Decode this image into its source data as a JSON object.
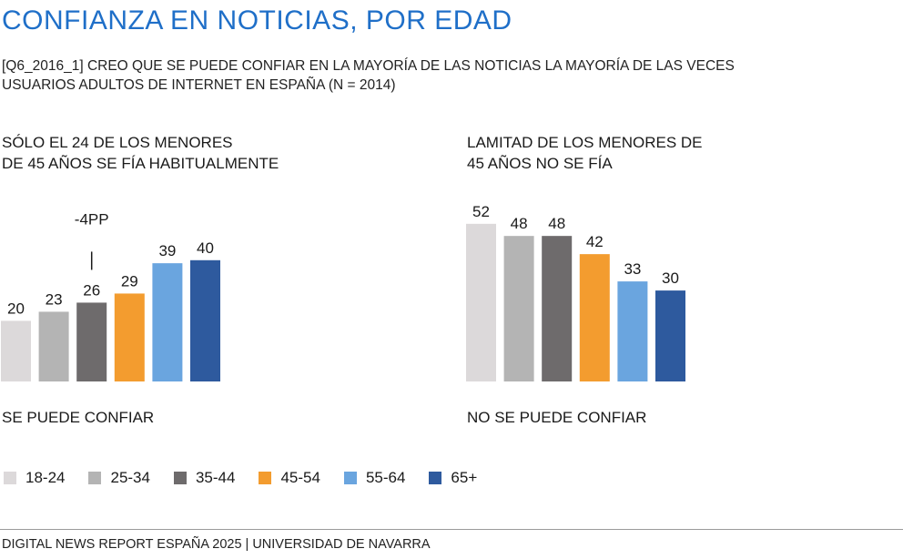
{
  "title": "CONFIANZA EN NOTICIAS, POR EDAD",
  "subtitle": {
    "line1": "[Q6_2016_1] CREO QUE SE PUEDE CONFIAR EN LA MAYORÍA DE LAS NOTICIAS LA MAYORÍA DE LAS VECES",
    "line2": "USUARIOS ADULTOS DE INTERNET EN ESPAÑA (N = 2014)"
  },
  "headlines": {
    "left": {
      "line1": "SÓLO EL 24 DE LOS MENORES",
      "line2": "DE 45 AÑOS SE FÍA HABITUALMENTE"
    },
    "right": {
      "line1": "LAMITAD DE LOS MENORES DE",
      "line2": "45 AÑOS NO SE FÍA"
    }
  },
  "colors": {
    "18-24": "#dcd9da",
    "25-34": "#b4b4b4",
    "35-44": "#6e6b6c",
    "45-54": "#f39c2f",
    "55-64": "#6aa5df",
    "65+": "#2e5a9e"
  },
  "legend": [
    {
      "label": "18-24",
      "color": "#dcd9da"
    },
    {
      "label": "25-34",
      "color": "#b4b4b4"
    },
    {
      "label": "35-44",
      "color": "#6e6b6c"
    },
    {
      "label": "45-54",
      "color": "#f39c2f"
    },
    {
      "label": "55-64",
      "color": "#6aa5df"
    },
    {
      "label": "65+",
      "color": "#2e5a9e"
    }
  ],
  "chart_data": [
    {
      "type": "bar",
      "xlabel": "SE PUEDE CONFIAR",
      "categories": [
        "18-24",
        "25-34",
        "35-44",
        "45-54",
        "55-64",
        "65+"
      ],
      "values": [
        20,
        23,
        26,
        29,
        39,
        40
      ],
      "annotations": [
        {
          "category": "35-44",
          "text": "-4PP"
        }
      ]
    },
    {
      "type": "bar",
      "xlabel": "NO SE PUEDE CONFIAR",
      "categories": [
        "18-24",
        "25-34",
        "35-44",
        "45-54",
        "55-64",
        "65+"
      ],
      "values": [
        52,
        48,
        48,
        42,
        33,
        30
      ]
    }
  ],
  "footer": "DIGITAL NEWS REPORT ESPAÑA 2025 | UNIVERSIDAD DE NAVARRA"
}
